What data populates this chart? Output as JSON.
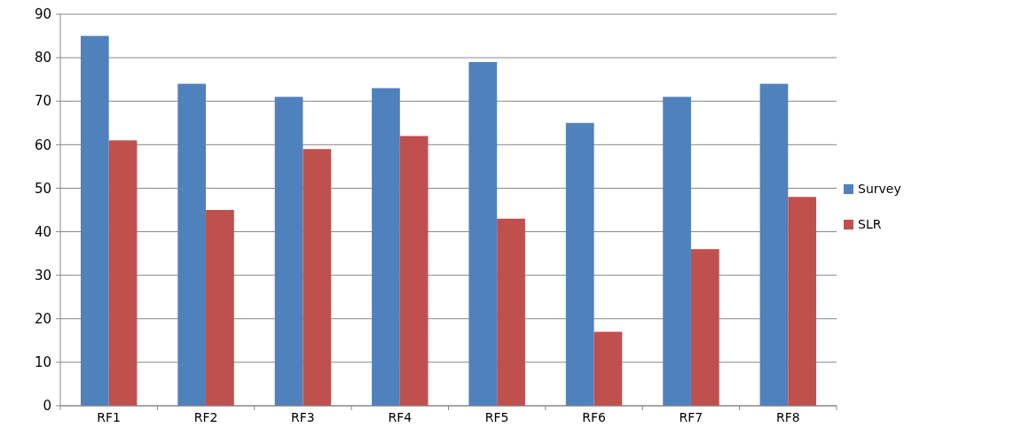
{
  "chart_data": {
    "type": "bar",
    "categories": [
      "RF1",
      "RF2",
      "RF3",
      "RF4",
      "RF5",
      "RF6",
      "RF7",
      "RF8"
    ],
    "series": [
      {
        "name": "Survey",
        "color": "#4f81bd",
        "values": [
          85,
          74,
          71,
          73,
          79,
          65,
          71,
          74
        ]
      },
      {
        "name": "SLR",
        "color": "#c0504d",
        "values": [
          61,
          45,
          59,
          62,
          43,
          17,
          36,
          48
        ]
      }
    ],
    "ylim": [
      0,
      90
    ],
    "yticks": [
      0,
      10,
      20,
      30,
      40,
      50,
      60,
      70,
      80,
      90
    ],
    "grid": "y",
    "legend": "right"
  }
}
